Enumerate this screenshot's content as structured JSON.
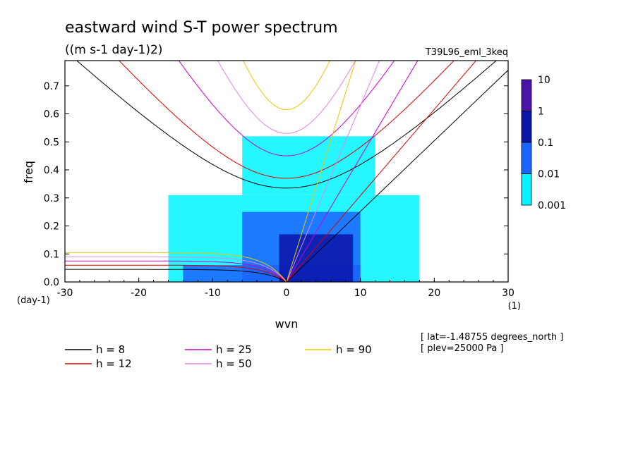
{
  "chart_data": {
    "type": "heatmap",
    "title": "eastward wind S-T power spectrum",
    "subtitle": "((m s-1 day-1)2)",
    "run_label": "T39L96_eml_3keq",
    "xlabel": "wvn",
    "ylabel": "freq",
    "x_unit": "(1)",
    "y_unit": "(day-1)",
    "xlim": [
      -30,
      30
    ],
    "ylim": [
      0,
      0.79
    ],
    "x_ticks": [
      {
        "v": -30,
        "label": "-30"
      },
      {
        "v": -20,
        "label": "-20"
      },
      {
        "v": -10,
        "label": "-10"
      },
      {
        "v": 0,
        "label": "0"
      },
      {
        "v": 10,
        "label": "10"
      },
      {
        "v": 20,
        "label": "20"
      },
      {
        "v": 30,
        "label": "30"
      }
    ],
    "y_ticks": [
      {
        "v": 0.0,
        "label": "0.0"
      },
      {
        "v": 0.1,
        "label": "0.1"
      },
      {
        "v": 0.2,
        "label": "0.2"
      },
      {
        "v": 0.3,
        "label": "0.3"
      },
      {
        "v": 0.4,
        "label": "0.4"
      },
      {
        "v": 0.5,
        "label": "0.5"
      },
      {
        "v": 0.6,
        "label": "0.6"
      },
      {
        "v": 0.7,
        "label": "0.7"
      }
    ],
    "color_scale": {
      "levels": [
        "10",
        "1",
        "0.1",
        "0.01",
        "0.001"
      ],
      "colors": [
        "#4a14a8",
        "#0a14a8",
        "#1a64ff",
        "#00f5ff"
      ]
    },
    "shading_regions": [
      {
        "level": "0.001-0.01",
        "color": "#00f5ff",
        "x": [
          -16,
          18
        ],
        "y": [
          0.0,
          0.31
        ]
      },
      {
        "level": "0.001-0.01",
        "color": "#00f5ff",
        "x": [
          -6,
          12
        ],
        "y": [
          0.31,
          0.52
        ]
      },
      {
        "level": "0.01-0.1",
        "color": "#1a64ff",
        "x": [
          -14,
          10
        ],
        "y": [
          0.0,
          0.06
        ]
      },
      {
        "level": "0.01-0.1",
        "color": "#1a64ff",
        "x": [
          -6,
          10
        ],
        "y": [
          0.0,
          0.25
        ]
      },
      {
        "level": "0.1-1",
        "color": "#0a14a8",
        "x": [
          -1,
          9
        ],
        "y": [
          0.0,
          0.17
        ]
      }
    ],
    "curve_series": [
      {
        "name": "h = 8",
        "color": "#000000",
        "ew_freq_at_x0": 0.335,
        "kelvin_slope": 0.0252
      },
      {
        "name": "h = 12",
        "color": "#dd0000",
        "ew_freq_at_x0": 0.37,
        "kelvin_slope": 0.0308
      },
      {
        "name": "h = 25",
        "color": "#cc00cc",
        "ew_freq_at_x0": 0.45,
        "kelvin_slope": 0.0445
      },
      {
        "name": "h = 50",
        "color": "#dd88dd",
        "ew_freq_at_x0": 0.53,
        "kelvin_slope": 0.0629
      },
      {
        "name": "h = 90",
        "color": "#e8c800",
        "ew_freq_at_x0": 0.615,
        "kelvin_slope": 0.0844
      }
    ],
    "annotations": [
      "[ lat=-1.48755 degrees_north ]",
      "[ plev=25000 Pa ]"
    ]
  }
}
